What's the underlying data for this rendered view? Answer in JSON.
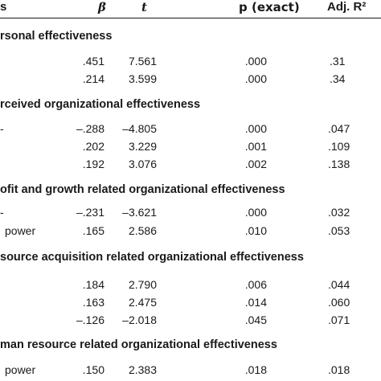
{
  "header": {
    "col0": "s",
    "beta": "β",
    "t": "t",
    "p": "p (exact)",
    "r2": "Adj. R²"
  },
  "sections": [
    {
      "title": "rsonal effectiveness",
      "rows": [
        {
          "label": "",
          "beta": ".451",
          "t": "7.561",
          "p": ".000",
          "r2": ".31"
        },
        {
          "label": "",
          "beta": ".214",
          "t": "3.599",
          "p": ".000",
          "r2": ".34"
        }
      ]
    },
    {
      "title": "rceived organizational effectiveness",
      "rows": [
        {
          "label": "-",
          "beta": "–.288",
          "t": "–4.805",
          "p": ".000",
          "r2": ".047"
        },
        {
          "label": "",
          "beta": ".202",
          "t": "3.229",
          "p": ".001",
          "r2": ".109"
        },
        {
          "label": "",
          "beta": ".192",
          "t": "3.076",
          "p": ".002",
          "r2": ".138"
        }
      ]
    },
    {
      "title": "ofit and growth related organizational effectiveness",
      "rows": [
        {
          "label": "-",
          "beta": "–.231",
          "t": "–3.621",
          "p": ".000",
          "r2": ".032"
        },
        {
          "label": "power",
          "beta": ".165",
          "t": "2.586",
          "p": ".010",
          "r2": ".053"
        }
      ]
    },
    {
      "title": "source acquisition related organizational effectiveness",
      "rows": [
        {
          "label": "",
          "beta": ".184",
          "t": "2.790",
          "p": ".006",
          "r2": ".044"
        },
        {
          "label": "",
          "beta": ".163",
          "t": "2.475",
          "p": ".014",
          "r2": ".060"
        },
        {
          "label": "",
          "beta": "–.126",
          "t": "–2.018",
          "p": ".045",
          "r2": ".071"
        }
      ]
    },
    {
      "title": "man resource related organizational effectiveness",
      "rows": [
        {
          "label": "power",
          "beta": ".150",
          "t": "2.383",
          "p": ".018",
          "r2": ".018"
        }
      ]
    }
  ]
}
